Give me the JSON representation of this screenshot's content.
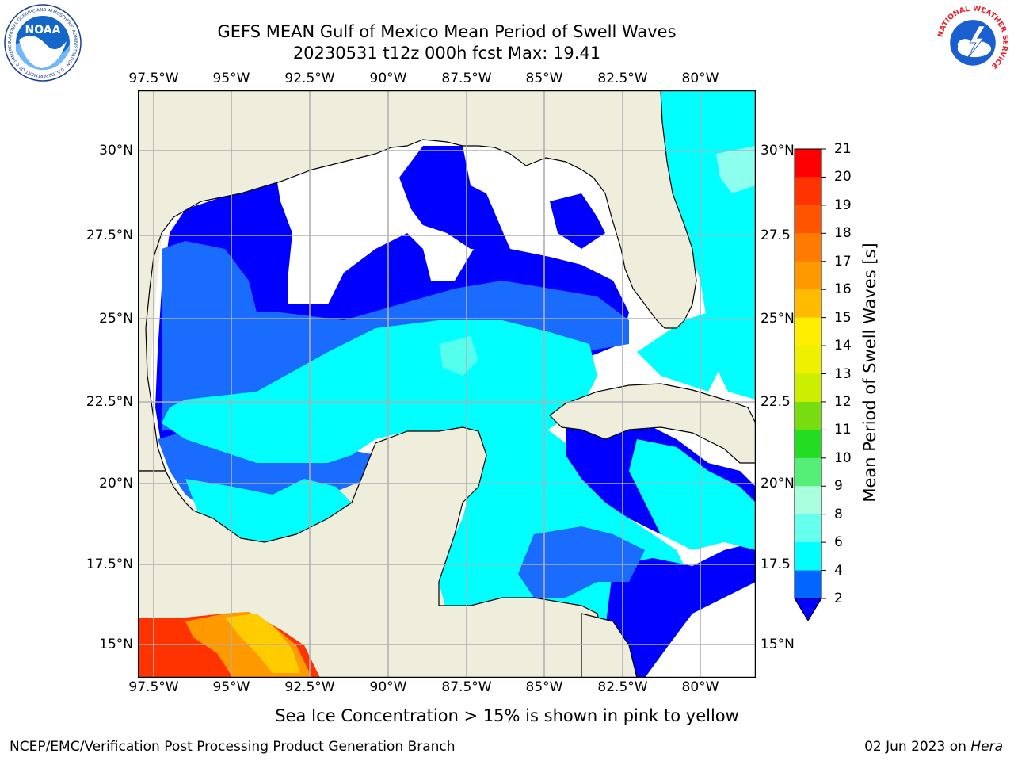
{
  "header": {
    "title_line1": "GEFS MEAN Gulf of Mexico Mean Period of Swell Waves",
    "title_line2": "20230531 t12z 000h fcst   Max: 19.41"
  },
  "logos": {
    "left": "NOAA",
    "left_ring_text": "NATIONAL OCEANIC AND ATMOSPHERIC ADMINISTRATION · U.S. DEPARTMENT OF COMMERCE",
    "right_ring_text": "NATIONAL WEATHER SERVICE"
  },
  "axes": {
    "lon_labels": [
      "97.5°W",
      "95°W",
      "92.5°W",
      "90°W",
      "87.5°W",
      "85°W",
      "82.5°W",
      "80°W"
    ],
    "lat_labels_left": [
      "30°N",
      "27.5°N",
      "25°N",
      "22.5°N",
      "20°N",
      "17.5°N",
      "15°N"
    ],
    "lat_labels_right": [
      "30°N",
      "27.5",
      "25°N",
      "22.5",
      "20°N",
      "17.5",
      "15°N"
    ]
  },
  "colorbar": {
    "label": "Mean Period of Swell Waves [s]",
    "ticks": [
      "21",
      "20",
      "19",
      "18",
      "17",
      "16",
      "15",
      "14",
      "13",
      "12",
      "11",
      "10",
      "9",
      "8",
      "6",
      "4",
      "2"
    ],
    "colors": [
      "#ff0000",
      "#ff3300",
      "#ff5500",
      "#ff7a00",
      "#ff9900",
      "#ffbb00",
      "#ffee00",
      "#f2f200",
      "#ddf000",
      "#ccee00",
      "#66dd11",
      "#22cc33",
      "#55ee77",
      "#aaffdd",
      "#66ffee",
      "#00ffff",
      "#00aaff",
      "#0066ff",
      "#0000ff"
    ]
  },
  "map_colors": {
    "land": "#efeddc",
    "sea_2_4": "#0000ff",
    "sea_4_6": "#1a6cff",
    "sea_6_8": "#00ffff",
    "sea_8_9": "#55ffee",
    "warm_1": "#ff3300",
    "warm_2": "#ff9900",
    "warm_3": "#ffcc00"
  },
  "footer": {
    "note": "Sea Ice Concentration > 15% is shown in pink to yellow",
    "credit": "NCEP/EMC/Verification Post Processing Product Generation Branch",
    "date": "02 Jun 2023 on",
    "host": "Hera"
  }
}
